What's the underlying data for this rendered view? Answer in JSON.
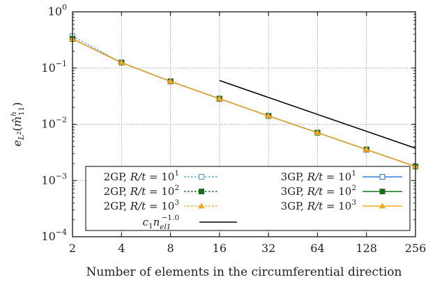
{
  "chart_data": {
    "type": "line",
    "title": "",
    "xlabel": "Number of elements in the circumferential direction",
    "ylabel": "e_{L²}(m̂ʰ₁₁)",
    "xscale": "log2",
    "yscale": "log10",
    "xlim": [
      2,
      256
    ],
    "ylim": [
      0.0001,
      1
    ],
    "x_ticks": [
      2,
      4,
      8,
      16,
      32,
      64,
      128,
      256
    ],
    "x_tick_labels": [
      "2",
      "4",
      "8",
      "16",
      "32",
      "64",
      "128",
      "256"
    ],
    "y_ticks": [
      {
        "value": 1,
        "base": "10",
        "exp": "0"
      },
      {
        "value": 0.1,
        "base": "10",
        "exp": "−1"
      },
      {
        "value": 0.01,
        "base": "10",
        "exp": "−2"
      },
      {
        "value": 0.001,
        "base": "10",
        "exp": "−3"
      },
      {
        "value": 0.0001,
        "base": "10",
        "exp": "−4"
      }
    ],
    "grid": true,
    "legend_position": "bottom-left",
    "series": [
      {
        "name": "2GP, R/t = 10^1",
        "label": {
          "pre": "2GP, ",
          "ratio": "R/t",
          "mid": " = 10",
          "exp": "1"
        },
        "color": "#5b9bd5",
        "dash": "dotted",
        "marker": "open-square",
        "x": [
          2,
          4,
          8,
          16,
          32,
          64,
          128,
          256
        ],
        "y": [
          0.37,
          0.125,
          0.058,
          0.0285,
          0.0141,
          0.0071,
          0.00355,
          0.00178
        ]
      },
      {
        "name": "2GP, R/t = 10^2",
        "label": {
          "pre": "2GP, ",
          "ratio": "R/t",
          "mid": " = 10",
          "exp": "2"
        },
        "color": "#1a6e1a",
        "dash": "dotted",
        "marker": "filled-square",
        "x": [
          2,
          4,
          8,
          16,
          32,
          64,
          128,
          256
        ],
        "y": [
          0.33,
          0.125,
          0.058,
          0.0285,
          0.0141,
          0.0071,
          0.00355,
          0.00178
        ]
      },
      {
        "name": "2GP, R/t = 10^3",
        "label": {
          "pre": "2GP, ",
          "ratio": "R/t",
          "mid": " = 10",
          "exp": "3"
        },
        "color": "#f5a623",
        "dash": "dotted",
        "marker": "filled-triangle",
        "x": [
          2,
          4,
          8,
          16,
          32,
          64,
          128,
          256
        ],
        "y": [
          0.33,
          0.125,
          0.058,
          0.0285,
          0.0141,
          0.0071,
          0.00355,
          0.00178
        ]
      },
      {
        "name": "3GP, R/t = 10^1",
        "label": {
          "pre": "3GP, ",
          "ratio": "R/t",
          "mid": " = 10",
          "exp": "1"
        },
        "color": "#3b7dd8",
        "dash": "solid",
        "marker": "open-square",
        "x": [
          2,
          4,
          8,
          16,
          32,
          64,
          128,
          256
        ],
        "y": [
          0.33,
          0.125,
          0.058,
          0.0285,
          0.0141,
          0.0071,
          0.00355,
          0.00178
        ]
      },
      {
        "name": "3GP, R/t = 10^2",
        "label": {
          "pre": "3GP, ",
          "ratio": "R/t",
          "mid": " = 10",
          "exp": "2"
        },
        "color": "#1a6e1a",
        "dash": "solid",
        "marker": "filled-square",
        "x": [
          2,
          4,
          8,
          16,
          32,
          64,
          128,
          256
        ],
        "y": [
          0.33,
          0.125,
          0.058,
          0.0285,
          0.0141,
          0.0071,
          0.00355,
          0.00178
        ]
      },
      {
        "name": "3GP, R/t = 10^3",
        "label": {
          "pre": "3GP, ",
          "ratio": "R/t",
          "mid": " = 10",
          "exp": "3"
        },
        "color": "#f5a623",
        "dash": "solid",
        "marker": "filled-triangle",
        "x": [
          2,
          4,
          8,
          16,
          32,
          64,
          128,
          256
        ],
        "y": [
          0.33,
          0.125,
          0.058,
          0.0285,
          0.0141,
          0.0071,
          0.00355,
          0.00178
        ]
      },
      {
        "name": "c1 n_el1^-1.0",
        "label": {
          "coef": "c",
          "coefSub": "1",
          "var": "n",
          "varSub": "el1",
          "exp": "−1.0"
        },
        "color": "#000000",
        "dash": "solid",
        "marker": "none",
        "x": [
          16,
          256
        ],
        "y": [
          0.06,
          0.00375
        ]
      }
    ]
  }
}
